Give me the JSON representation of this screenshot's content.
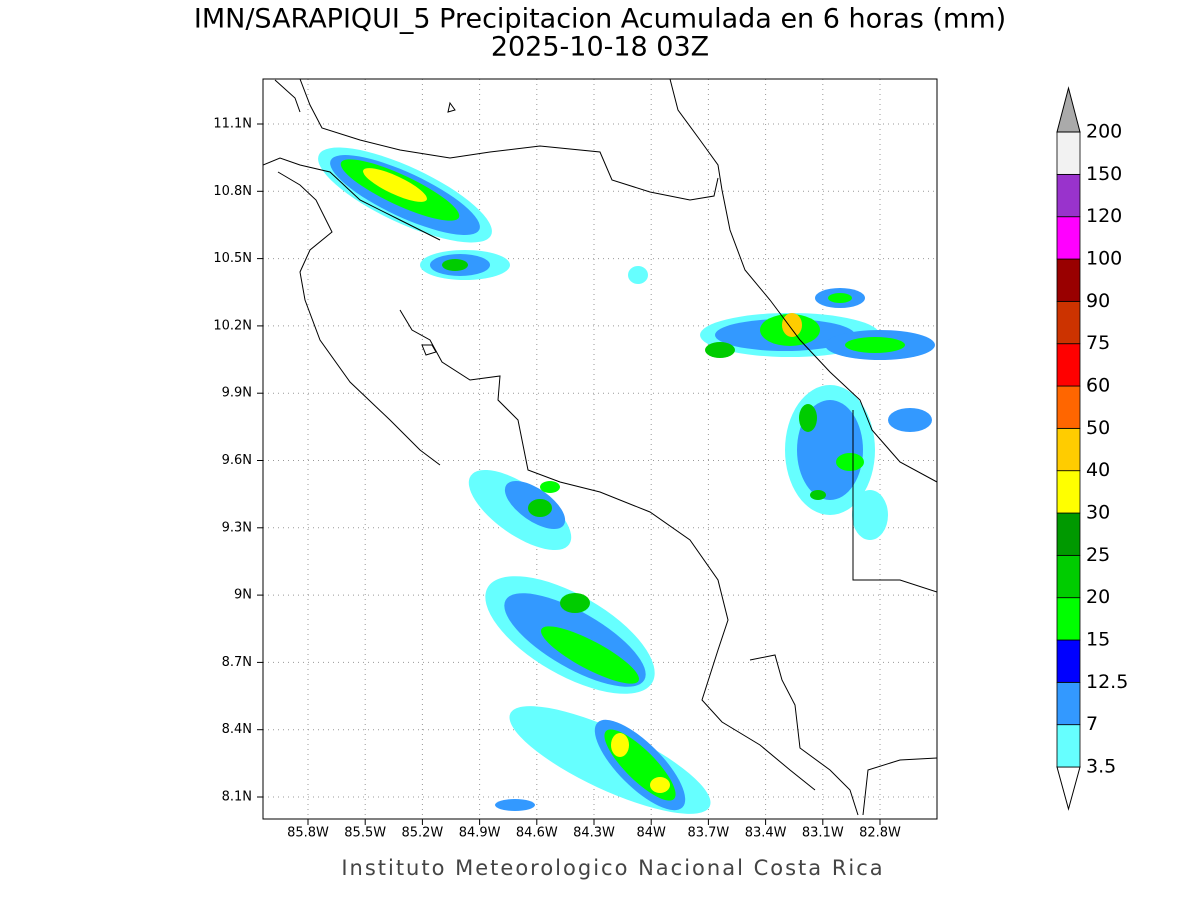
{
  "title": {
    "line1": "IMN/SARAPIQUI_5 Precipitacion Acumulada en 6 horas (mm)",
    "line2": "2025-10-18 03Z"
  },
  "map": {
    "xticks": [
      "85.8W",
      "85.5W",
      "85.2W",
      "84.9W",
      "84.6W",
      "84.3W",
      "84W",
      "83.7W",
      "83.4W",
      "83.1W",
      "82.8W"
    ],
    "yticks": [
      "11.1N",
      "10.8N",
      "10.5N",
      "10.2N",
      "9.9N",
      "9.6N",
      "9.3N",
      "9N",
      "8.7N",
      "8.4N",
      "8.1N"
    ],
    "grid": true
  },
  "colorbar": {
    "levels": [
      3.5,
      7,
      12.5,
      15,
      20,
      25,
      30,
      40,
      50,
      60,
      75,
      90,
      100,
      120,
      150,
      200
    ],
    "colors": [
      "#ffffff",
      "#66ffff",
      "#3399ff",
      "#0000ff",
      "#00ff00",
      "#00cc00",
      "#009900",
      "#ffff00",
      "#ffcc00",
      "#ff6600",
      "#ff0000",
      "#cc3300",
      "#990000",
      "#ff00ff",
      "#9933cc",
      "#f2f2f2",
      "#aaaaaa"
    ]
  },
  "footer": "Instituto Meteorologico Nacional Costa Rica"
}
